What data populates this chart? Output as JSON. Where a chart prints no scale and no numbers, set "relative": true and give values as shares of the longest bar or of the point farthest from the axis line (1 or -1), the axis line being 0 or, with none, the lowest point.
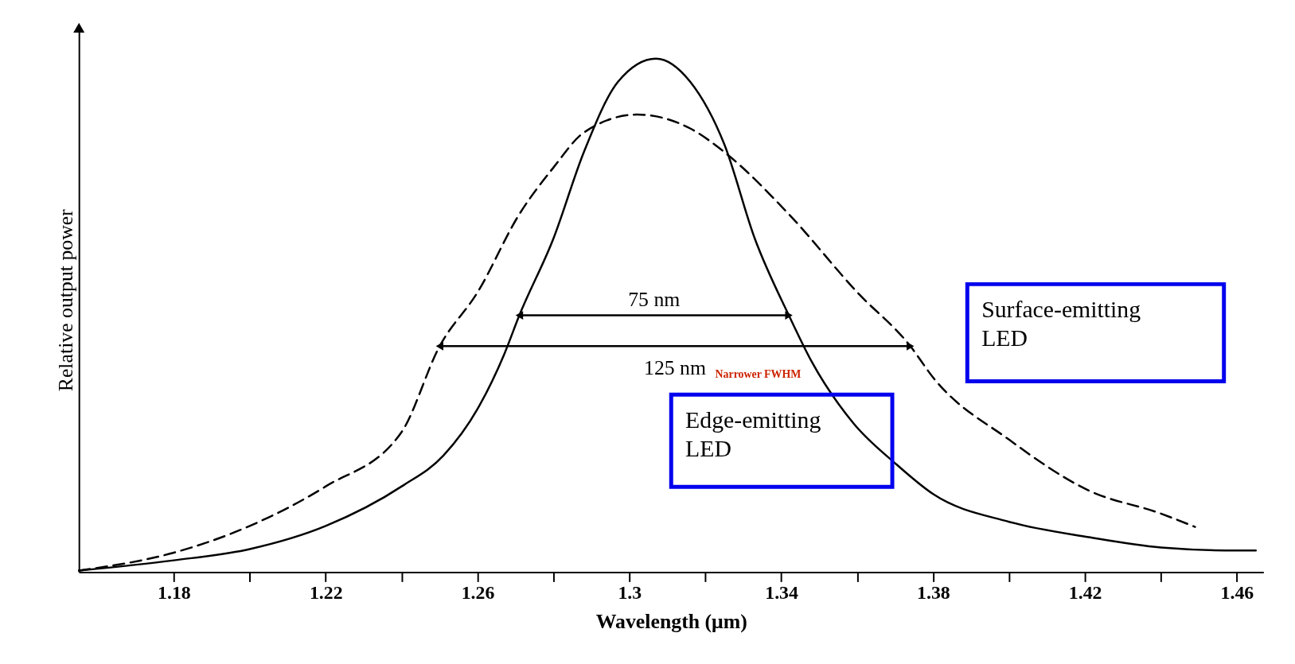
{
  "chart_data": {
    "type": "line",
    "relative": true,
    "xlabel": "Wavelength (μm)",
    "ylabel": "Relative output power",
    "xlim": [
      1.155,
      1.467
    ],
    "xticks": [
      1.18,
      {
        "value": 1.2,
        "label": null
      },
      1.22,
      {
        "value": 1.24,
        "label": null
      },
      1.26,
      {
        "value": 1.28,
        "label": null
      },
      1.3,
      {
        "value": 1.32,
        "label": null
      },
      1.34,
      {
        "value": 1.36,
        "label": null
      },
      1.38,
      {
        "value": 1.4,
        "label": null
      },
      1.42,
      {
        "value": 1.44,
        "label": null
      },
      1.46
    ],
    "grid": false,
    "marker": "none",
    "series": [
      {
        "name": "Edge-emitting LED",
        "color": "#000000",
        "line_style": "solid",
        "x": [
          1.155,
          1.18,
          1.2,
          1.22,
          1.24,
          1.251,
          1.26,
          1.267,
          1.271,
          1.28,
          1.288,
          1.297,
          1.307,
          1.316,
          1.325,
          1.333,
          1.342,
          1.348,
          1.359,
          1.37,
          1.38,
          1.4,
          1.421,
          1.44,
          1.46,
          1.465
        ],
        "values": [
          0.003,
          0.023,
          0.045,
          0.09,
          0.167,
          0.227,
          0.318,
          0.424,
          0.5,
          0.65,
          0.818,
          0.955,
          1.0,
          0.955,
          0.833,
          0.65,
          0.5,
          0.41,
          0.29,
          0.212,
          0.152,
          0.098,
          0.068,
          0.048,
          0.042,
          0.042
        ]
      },
      {
        "name": "Surface-emitting LED",
        "color": "#000000",
        "line_style": "dashed",
        "x": [
          1.155,
          1.18,
          1.2,
          1.22,
          1.24,
          1.25,
          1.26,
          1.271,
          1.28,
          1.288,
          1.302,
          1.316,
          1.325,
          1.342,
          1.36,
          1.374,
          1.38,
          1.4,
          1.421,
          1.44,
          1.449
        ],
        "values": [
          0.003,
          0.038,
          0.09,
          0.167,
          0.273,
          0.44,
          0.545,
          0.697,
          0.788,
          0.856,
          0.891,
          0.864,
          0.818,
          0.697,
          0.545,
          0.44,
          0.379,
          0.258,
          0.159,
          0.114,
          0.088
        ]
      },
      {
        "type": "line",
        "color": "#000000",
        "line_style": "solid",
        "x": [
          1.271,
          1.342
        ],
        "values": [
          0.5,
          0.5
        ]
      },
      {
        "type": "line",
        "color": "#000000",
        "line_style": "solid",
        "x": [
          1.25,
          1.374
        ],
        "values": [
          0.44,
          0.44
        ]
      }
    ],
    "annotations": [
      "75 nm",
      "125 nm",
      "Narrower FWHM"
    ]
  }
}
